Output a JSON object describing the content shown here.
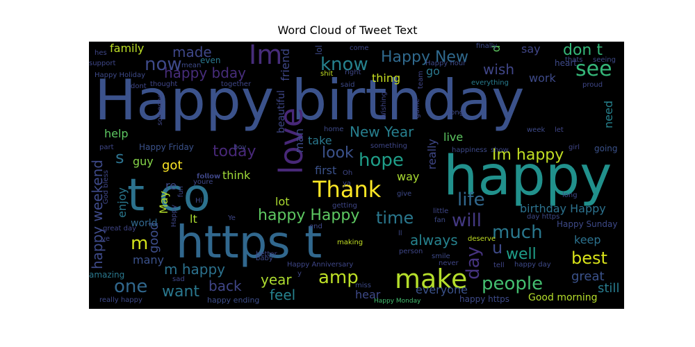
{
  "chart_data": {
    "type": "wordcloud",
    "title": "Word Cloud of Tweet Text",
    "background": "#000000",
    "colormap": "viridis",
    "words": [
      {
        "text": "Happy birthday",
        "weight": 1.0
      },
      {
        "text": "happy",
        "weight": 0.78
      },
      {
        "text": "https t",
        "weight": 0.72
      },
      {
        "text": "t co",
        "weight": 0.7
      },
      {
        "text": "love",
        "weight": 0.5
      },
      {
        "text": "Im",
        "weight": 0.42
      },
      {
        "text": "make",
        "weight": 0.42
      },
      {
        "text": "Thank",
        "weight": 0.38
      },
      {
        "text": "see",
        "weight": 0.34
      },
      {
        "text": "hope",
        "weight": 0.3
      },
      {
        "text": "life",
        "weight": 0.3
      },
      {
        "text": "will",
        "weight": 0.3
      },
      {
        "text": "amp",
        "weight": 0.3
      },
      {
        "text": "people",
        "weight": 0.28
      },
      {
        "text": "much",
        "weight": 0.28
      },
      {
        "text": "now",
        "weight": 0.28
      },
      {
        "text": "know",
        "weight": 0.28
      },
      {
        "text": "one",
        "weight": 0.28
      },
      {
        "text": "day",
        "weight": 0.28
      },
      {
        "text": "m",
        "weight": 0.28
      },
      {
        "text": "time",
        "weight": 0.26
      },
      {
        "text": "best",
        "weight": 0.26
      },
      {
        "text": "Im happy",
        "weight": 0.25
      },
      {
        "text": "today",
        "weight": 0.25
      },
      {
        "text": "look",
        "weight": 0.25
      },
      {
        "text": "well",
        "weight": 0.25
      },
      {
        "text": "want",
        "weight": 0.24
      },
      {
        "text": "don t",
        "weight": 0.24
      },
      {
        "text": "s",
        "weight": 0.24
      },
      {
        "text": "u",
        "weight": 0.24
      },
      {
        "text": "happy Happy",
        "weight": 0.23
      },
      {
        "text": "Happy New",
        "weight": 0.23
      },
      {
        "text": "New Year",
        "weight": 0.22
      },
      {
        "text": "happy bday",
        "weight": 0.22
      },
      {
        "text": "happy weekend",
        "weight": 0.22
      },
      {
        "text": "m happy",
        "weight": 0.22
      },
      {
        "text": "always",
        "weight": 0.22
      },
      {
        "text": "wish",
        "weight": 0.2
      },
      {
        "text": "made",
        "weight": 0.2
      },
      {
        "text": "year",
        "weight": 0.2
      },
      {
        "text": "back",
        "weight": 0.2
      },
      {
        "text": "feel",
        "weight": 0.2
      },
      {
        "text": "got",
        "weight": 0.2
      },
      {
        "text": "great",
        "weight": 0.18
      },
      {
        "text": "still",
        "weight": 0.18
      },
      {
        "text": "good",
        "weight": 0.18
      },
      {
        "text": "family",
        "weight": 0.17
      },
      {
        "text": "thing",
        "weight": 0.17
      },
      {
        "text": "work",
        "weight": 0.17
      },
      {
        "text": "birthday Happy",
        "weight": 0.17
      },
      {
        "text": "go",
        "weight": 0.17
      },
      {
        "text": "say",
        "weight": 0.16
      },
      {
        "text": "friend",
        "weight": 0.16
      },
      {
        "text": "man",
        "weight": 0.16
      },
      {
        "text": "really",
        "weight": 0.16
      },
      {
        "text": "way",
        "weight": 0.16
      },
      {
        "text": "many",
        "weight": 0.16
      },
      {
        "text": "hear",
        "weight": 0.16
      },
      {
        "text": "everyone",
        "weight": 0.15
      },
      {
        "text": "keep",
        "weight": 0.15
      },
      {
        "text": "enjoy",
        "weight": 0.15
      },
      {
        "text": "think",
        "weight": 0.15
      },
      {
        "text": "lot",
        "weight": 0.15
      },
      {
        "text": "re",
        "weight": 0.15
      },
      {
        "text": "lt",
        "weight": 0.15
      },
      {
        "text": "need",
        "weight": 0.14
      },
      {
        "text": "live",
        "weight": 0.14
      },
      {
        "text": "take",
        "weight": 0.14
      },
      {
        "text": "first",
        "weight": 0.14
      },
      {
        "text": "help",
        "weight": 0.14
      },
      {
        "text": "guy",
        "weight": 0.14
      },
      {
        "text": "May",
        "weight": 0.14
      },
      {
        "text": "world",
        "weight": 0.13
      },
      {
        "text": "Good morning",
        "weight": 0.13
      },
      {
        "text": "beautiful",
        "weight": 0.12
      },
      {
        "text": "d",
        "weight": 0.13
      },
      {
        "text": "lol",
        "weight": 0.1
      },
      {
        "text": "happy https",
        "weight": 0.11
      },
      {
        "text": "happy ending",
        "weight": 0.09
      },
      {
        "text": "Happy Sunday",
        "weight": 0.1
      },
      {
        "text": "Happy Friday",
        "weight": 0.1
      },
      {
        "text": "heart",
        "weight": 0.1
      },
      {
        "text": "going",
        "weight": 0.1
      },
      {
        "text": "amazing",
        "weight": 0.1
      },
      {
        "text": "even",
        "weight": 0.1
      },
      {
        "text": "everything",
        "weight": 0.09
      },
      {
        "text": "proud",
        "weight": 0.09
      },
      {
        "text": "game",
        "weight": 0.09
      },
      {
        "text": "something",
        "weight": 0.09
      },
      {
        "text": "happiness",
        "weight": 0.09
      },
      {
        "text": "show",
        "weight": 0.09
      },
      {
        "text": "week",
        "weight": 0.09
      },
      {
        "text": "let",
        "weight": 0.09
      },
      {
        "text": "girl",
        "weight": 0.09
      },
      {
        "text": "Happy Holiday",
        "weight": 0.08
      },
      {
        "text": "Happy hour",
        "weight": 0.08
      },
      {
        "text": "Happy Anniversary",
        "weight": 0.08
      },
      {
        "text": "Happy Monday",
        "weight": 0.08
      },
      {
        "text": "really happy",
        "weight": 0.08
      },
      {
        "text": "great day",
        "weight": 0.08
      },
      {
        "text": "day https",
        "weight": 0.08
      },
      {
        "text": "happy day",
        "weight": 0.08
      },
      {
        "text": "Happy",
        "weight": 0.09
      },
      {
        "text": "dont",
        "weight": 0.08
      },
      {
        "text": "thought",
        "weight": 0.08
      },
      {
        "text": "together",
        "weight": 0.08
      },
      {
        "text": "someone",
        "weight": 0.08
      },
      {
        "text": "boy",
        "weight": 0.08
      },
      {
        "text": "part",
        "weight": 0.08
      },
      {
        "text": "youre",
        "weight": 0.08
      },
      {
        "text": "God bless",
        "weight": 0.08
      },
      {
        "text": "fun",
        "weight": 0.08
      },
      {
        "text": "Hi",
        "weight": 0.08
      },
      {
        "text": "Ye",
        "weight": 0.08
      },
      {
        "text": "ve",
        "weight": 0.08
      },
      {
        "text": "sad",
        "weight": 0.08
      },
      {
        "text": "baby",
        "weight": 0.08
      },
      {
        "text": "better",
        "weight": 0.08
      },
      {
        "text": "making",
        "weight": 0.08
      },
      {
        "text": "deserve",
        "weight": 0.08
      },
      {
        "text": "person",
        "weight": 0.08
      },
      {
        "text": "smile",
        "weight": 0.08
      },
      {
        "text": "never",
        "weight": 0.08
      },
      {
        "text": "tell",
        "weight": 0.08
      },
      {
        "text": "fan",
        "weight": 0.08
      },
      {
        "text": "little",
        "weight": 0.08
      },
      {
        "text": "long",
        "weight": 0.08
      },
      {
        "text": "give",
        "weight": 0.08
      },
      {
        "text": "getting",
        "weight": 0.08
      },
      {
        "text": "end",
        "weight": 0.08
      },
      {
        "text": "miss",
        "weight": 0.08
      },
      {
        "text": "ll",
        "weight": 0.08
      },
      {
        "text": "y",
        "weight": 0.08
      },
      {
        "text": "ya",
        "weight": 0.08
      },
      {
        "text": "Oh",
        "weight": 0.08
      },
      {
        "text": "home",
        "weight": 0.08
      },
      {
        "text": "song",
        "weight": 0.08
      },
      {
        "text": "Wishing",
        "weight": 0.08
      },
      {
        "text": "team",
        "weight": 0.08
      },
      {
        "text": "said",
        "weight": 0.08
      },
      {
        "text": "right",
        "weight": 0.08
      },
      {
        "text": "shit",
        "weight": 0.08
      },
      {
        "text": "come",
        "weight": 0.08
      },
      {
        "text": "finally",
        "weight": 0.08
      },
      {
        "text": "thats",
        "weight": 0.08
      },
      {
        "text": "seeing",
        "weight": 0.08
      },
      {
        "text": "hes",
        "weight": 0.08
      },
      {
        "text": "support",
        "weight": 0.08
      },
      {
        "text": "mean",
        "weight": 0.08
      },
      {
        "text": "𝗳𝗼𝗹𝗹𝗼𝘄",
        "weight": 0.08
      }
    ]
  }
}
